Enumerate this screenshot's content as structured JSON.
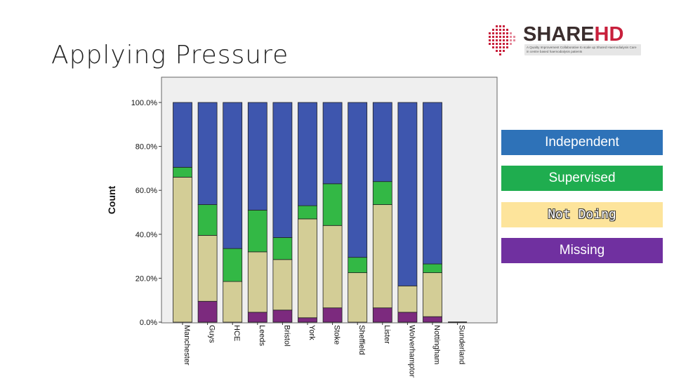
{
  "slide": {
    "title": "Applying Pressure"
  },
  "logo": {
    "brand_primary": "SHARE",
    "brand_accent": "HD",
    "tagline": "A Quality Improvement Collaborative to scale up Shared Haemodialysis Care in centre based haemodialysis patients"
  },
  "legend": [
    {
      "label": "Independent",
      "color": "#2e72b8"
    },
    {
      "label": "Supervised",
      "color": "#1fad4f"
    },
    {
      "label": "Not Doing",
      "color": "#fde49b"
    },
    {
      "label": "Missing",
      "color": "#7030a0"
    }
  ],
  "chart_data": {
    "type": "bar",
    "stacked": true,
    "ylabel": "Count",
    "xlabel": "",
    "ylim": [
      0,
      100
    ],
    "yticks": [
      "0.0%",
      "20.0%",
      "40.0%",
      "60.0%",
      "80.0%",
      "100.0%"
    ],
    "categories": [
      "Manchester",
      "Guys",
      "HCE",
      "Leeds",
      "Bristol",
      "York",
      "Stoke",
      "Sheffield",
      "Lister",
      "Wolverhampton",
      "Nottingham",
      "Sunderland"
    ],
    "series": [
      {
        "key": "missing",
        "color": "#7c2a7e",
        "values": [
          0,
          9.5,
          0,
          4.5,
          5.5,
          2,
          6.5,
          0,
          6.5,
          4.5,
          2.5,
          0
        ]
      },
      {
        "key": "not_doing",
        "color": "#d3cd96",
        "values": [
          66,
          30,
          18.5,
          27.5,
          23,
          45,
          37.5,
          22.5,
          47,
          12,
          20,
          0
        ]
      },
      {
        "key": "supervised",
        "color": "#33b845",
        "values": [
          4.5,
          14,
          15,
          19,
          10,
          6,
          19,
          7,
          10.5,
          0,
          4,
          0
        ]
      },
      {
        "key": "independent",
        "color": "#3e56ae",
        "values": [
          29.5,
          46.5,
          66.5,
          49,
          61.5,
          47,
          37,
          70.5,
          36,
          83.5,
          73.5,
          0
        ]
      }
    ],
    "grid": false
  }
}
